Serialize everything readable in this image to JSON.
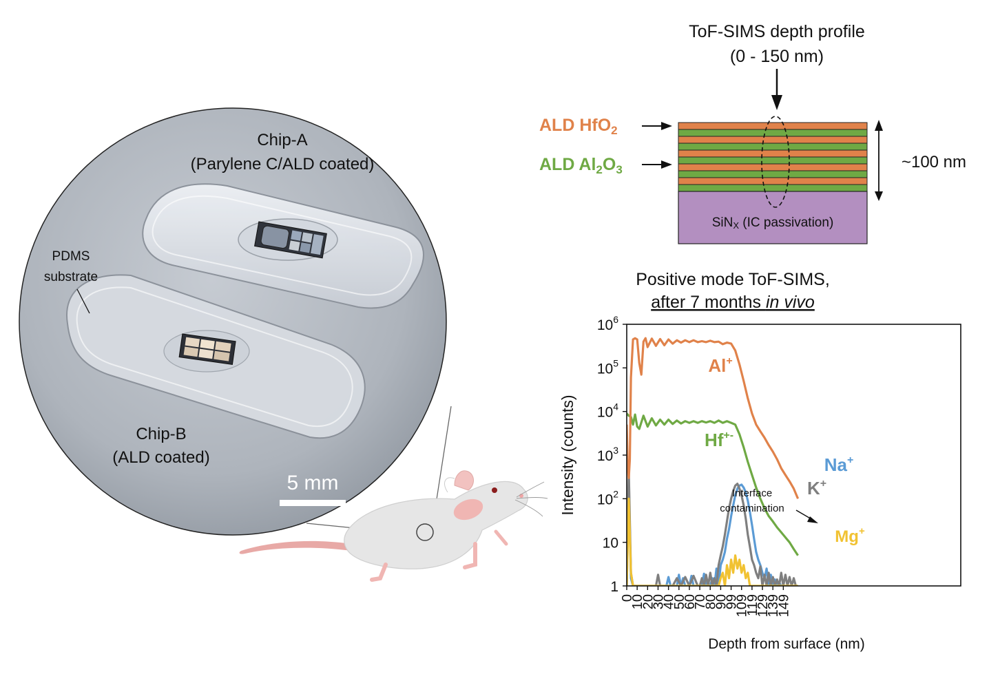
{
  "photo": {
    "chip_a": {
      "name": "Chip-A",
      "note": "(Parylene C/ALD coated)"
    },
    "chip_b": {
      "name": "Chip-B",
      "note": "(ALD coated)"
    },
    "substrate_label": {
      "line1": "PDMS",
      "line2": "substrate"
    },
    "scale_bar": "5 mm"
  },
  "stack": {
    "title": {
      "line1": "ToF-SIMS depth profile",
      "line2": "(0 - 150 nm)"
    },
    "hfo2_label": {
      "pre": "ALD HfO",
      "sub": "2"
    },
    "al2o3_label": {
      "pre": "ALD Al",
      "sub1": "2",
      "mid": "O",
      "sub2": "3"
    },
    "thickness": "~100 nm",
    "substrate": {
      "pre": "SiN",
      "sub": "X",
      "post": " (IC passivation)"
    },
    "colors": {
      "hfo2": "#e0824a",
      "al2o3": "#6fa944",
      "sinx": "#b38fc0"
    }
  },
  "chart_title": {
    "line1": "Positive mode ToF-SIMS,",
    "line2_pre": "after 7 months ",
    "line2_em": "in vivo"
  },
  "annotation": {
    "line1": "Interface",
    "line2": "contamination"
  },
  "chart_data": {
    "type": "line",
    "ylabel": "Intensity (counts)",
    "xlabel": "Depth from surface (nm)",
    "yscale": "log",
    "ylim": [
      1,
      1000000
    ],
    "xlim": [
      0,
      160
    ],
    "y_ticks": [
      {
        "v": 1000000,
        "base": "10",
        "exp": "6"
      },
      {
        "v": 100000,
        "base": "10",
        "exp": "5"
      },
      {
        "v": 10000,
        "base": "10",
        "exp": "4"
      },
      {
        "v": 1000,
        "base": "10",
        "exp": "3"
      },
      {
        "v": 100,
        "base": "10",
        "exp": "2"
      },
      {
        "v": 10,
        "base": "10",
        "exp": ""
      },
      {
        "v": 1,
        "base": "1",
        "exp": ""
      }
    ],
    "x_ticks": [
      {
        "v": 0,
        "label": "0"
      },
      {
        "v": 5,
        "label": "10"
      },
      {
        "v": 10,
        "label": "20"
      },
      {
        "v": 15,
        "label": "30"
      },
      {
        "v": 20,
        "label": "40"
      },
      {
        "v": 25,
        "label": "50"
      },
      {
        "v": 30,
        "label": "60"
      },
      {
        "v": 35,
        "label": "70"
      },
      {
        "v": 40,
        "label": "80"
      },
      {
        "v": 45,
        "label": "90"
      },
      {
        "v": 50,
        "label": "99"
      },
      {
        "v": 55,
        "label": "109"
      },
      {
        "v": 60,
        "label": "119"
      },
      {
        "v": 65,
        "label": "129"
      },
      {
        "v": 70,
        "label": "139"
      },
      {
        "v": 75,
        "label": "149"
      }
    ],
    "series": [
      {
        "name": "Al",
        "sup": "+",
        "color": "#e0824a",
        "x": [
          0,
          0.5,
          1,
          1.5,
          2,
          3,
          4,
          5,
          6,
          7,
          8,
          9,
          10,
          12,
          14,
          16,
          18,
          20,
          22,
          24,
          26,
          28,
          30,
          32,
          34,
          36,
          38,
          40,
          42,
          44,
          46,
          48,
          50,
          52,
          54,
          56,
          58,
          60,
          62,
          64,
          66,
          68,
          70,
          72,
          74,
          76,
          78,
          80,
          82
        ],
        "y": [
          5000,
          500,
          300,
          800,
          60000,
          450000,
          480000,
          450000,
          130000,
          70000,
          400000,
          480000,
          300000,
          470000,
          320000,
          460000,
          330000,
          450000,
          360000,
          430000,
          380000,
          430000,
          390000,
          430000,
          390000,
          410000,
          390000,
          420000,
          390000,
          400000,
          350000,
          380000,
          360000,
          250000,
          120000,
          50000,
          20000,
          9000,
          5000,
          3500,
          2500,
          1700,
          1200,
          800,
          500,
          350,
          250,
          170,
          100
        ]
      },
      {
        "name": "Hf",
        "sup": "+-",
        "color": "#6fa944",
        "x": [
          0,
          1,
          2,
          3,
          4,
          5,
          6,
          8,
          10,
          12,
          14,
          16,
          18,
          20,
          22,
          24,
          26,
          28,
          30,
          32,
          34,
          36,
          38,
          40,
          42,
          44,
          46,
          48,
          50,
          52,
          54,
          56,
          58,
          60,
          62,
          64,
          66,
          68,
          70,
          72,
          74,
          76,
          78,
          80,
          82
        ],
        "y": [
          9000,
          8000,
          7500,
          5000,
          8500,
          4500,
          4000,
          8000,
          4500,
          7000,
          4800,
          6500,
          5000,
          6500,
          5200,
          6200,
          5300,
          6000,
          5500,
          6000,
          5500,
          6000,
          5600,
          6000,
          5500,
          6200,
          5500,
          6000,
          5500,
          5000,
          3000,
          1500,
          700,
          350,
          180,
          100,
          60,
          40,
          30,
          22,
          17,
          13,
          10,
          7,
          5
        ]
      },
      {
        "name": "Na",
        "sup": "+",
        "color": "#5b9bd5",
        "x": [
          0,
          1,
          2,
          3,
          4,
          5,
          6,
          8,
          10,
          12,
          14,
          16,
          18,
          19,
          20,
          21,
          22,
          23,
          24,
          25,
          26,
          27,
          28,
          29,
          30,
          31,
          32,
          33,
          34,
          35,
          36,
          37,
          38,
          39,
          40,
          41,
          42,
          43,
          44,
          45,
          46,
          47,
          48,
          49,
          50,
          51,
          52,
          53,
          54,
          55,
          56,
          57,
          58,
          59,
          60,
          61,
          62,
          63,
          64,
          65,
          66,
          67,
          68,
          69,
          70,
          71,
          72,
          73,
          74,
          75,
          76,
          77,
          78,
          79,
          80,
          81,
          82
        ],
        "y": [
          1,
          200,
          1.5,
          1,
          1,
          1,
          1,
          1,
          1,
          1,
          1,
          1,
          1,
          1,
          1.6,
          1,
          1,
          1,
          1,
          1.8,
          1,
          1.5,
          1,
          1,
          1,
          1.7,
          1,
          1,
          1,
          1,
          1,
          1.9,
          1,
          1,
          1,
          1.5,
          1,
          2.5,
          1,
          3,
          4,
          6,
          12,
          20,
          40,
          70,
          120,
          170,
          200,
          210,
          180,
          140,
          90,
          50,
          25,
          12,
          6,
          4,
          3,
          2,
          1.5,
          2.5,
          1,
          1.8,
          1,
          1.4,
          1,
          1.2,
          1,
          1,
          1,
          1,
          1,
          1,
          1,
          1,
          1
        ]
      },
      {
        "name": "K",
        "sup": "+",
        "color": "#7f7f7f",
        "x": [
          0,
          1,
          2,
          3,
          4,
          6,
          8,
          10,
          12,
          14,
          15,
          16,
          17,
          18,
          20,
          22,
          24,
          26,
          28,
          30,
          32,
          34,
          35,
          36,
          37,
          38,
          39,
          40,
          41,
          42,
          43,
          44,
          45,
          46,
          47,
          48,
          49,
          50,
          51,
          52,
          53,
          54,
          55,
          56,
          57,
          58,
          59,
          60,
          61,
          62,
          63,
          64,
          65,
          66,
          67,
          68,
          69,
          70,
          71,
          72,
          73,
          74,
          75,
          76,
          77,
          78,
          79,
          80,
          81,
          82
        ],
        "y": [
          1,
          400,
          2,
          1,
          1,
          1,
          1,
          1,
          1,
          1,
          1.8,
          1,
          1,
          1,
          1,
          1,
          1.5,
          1,
          1.6,
          1,
          1.7,
          1,
          1,
          1.5,
          1,
          1.8,
          1,
          2,
          1,
          1.5,
          1,
          3,
          5,
          8,
          15,
          30,
          60,
          100,
          150,
          200,
          220,
          170,
          120,
          70,
          35,
          15,
          8,
          4,
          3,
          2,
          1.5,
          2.8,
          1,
          1.8,
          1,
          2,
          1,
          1.6,
          1,
          1.4,
          1,
          2,
          1,
          1.8,
          1,
          1.6,
          1,
          1.5,
          1,
          1
        ]
      },
      {
        "name": "Mg",
        "sup": "+",
        "color": "#f1c232",
        "x": [
          0,
          1,
          2,
          3,
          4,
          6,
          8,
          10,
          20,
          30,
          40,
          44,
          45,
          46,
          47,
          48,
          49,
          50,
          51,
          52,
          53,
          54,
          55,
          56,
          57,
          58,
          59,
          60,
          70,
          80,
          82
        ],
        "y": [
          1,
          100,
          2,
          1,
          1,
          1,
          1,
          1,
          1,
          1,
          1,
          1,
          1.5,
          2,
          1,
          3,
          1.5,
          4,
          2,
          5,
          2.5,
          4,
          2,
          3,
          1.5,
          2,
          1,
          1,
          1,
          1,
          1
        ]
      }
    ]
  }
}
